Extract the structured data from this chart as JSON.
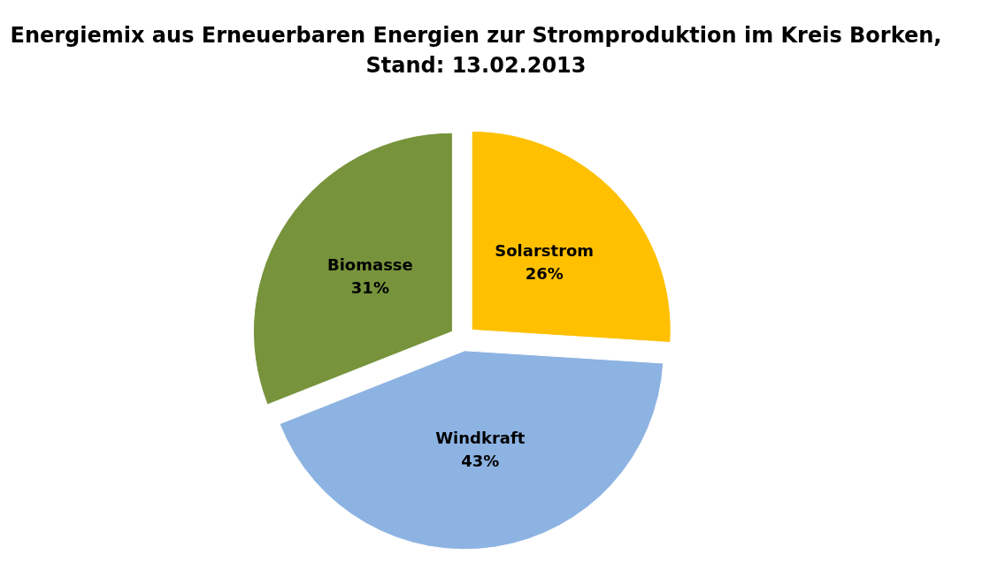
{
  "chart_data": {
    "type": "pie",
    "title": "Energiemix aus Erneuerbaren Energien zur Stromproduktion im Kreis Borken, Stand: 13.02.2013",
    "categories": [
      "Solarstrom",
      "Windkraft",
      "Biomasse"
    ],
    "values": [
      26,
      43,
      31
    ],
    "colors": [
      "#ffc000",
      "#8db3e2",
      "#77933c"
    ],
    "value_labels": [
      "26%",
      "43%",
      "31%"
    ],
    "legend": false
  }
}
